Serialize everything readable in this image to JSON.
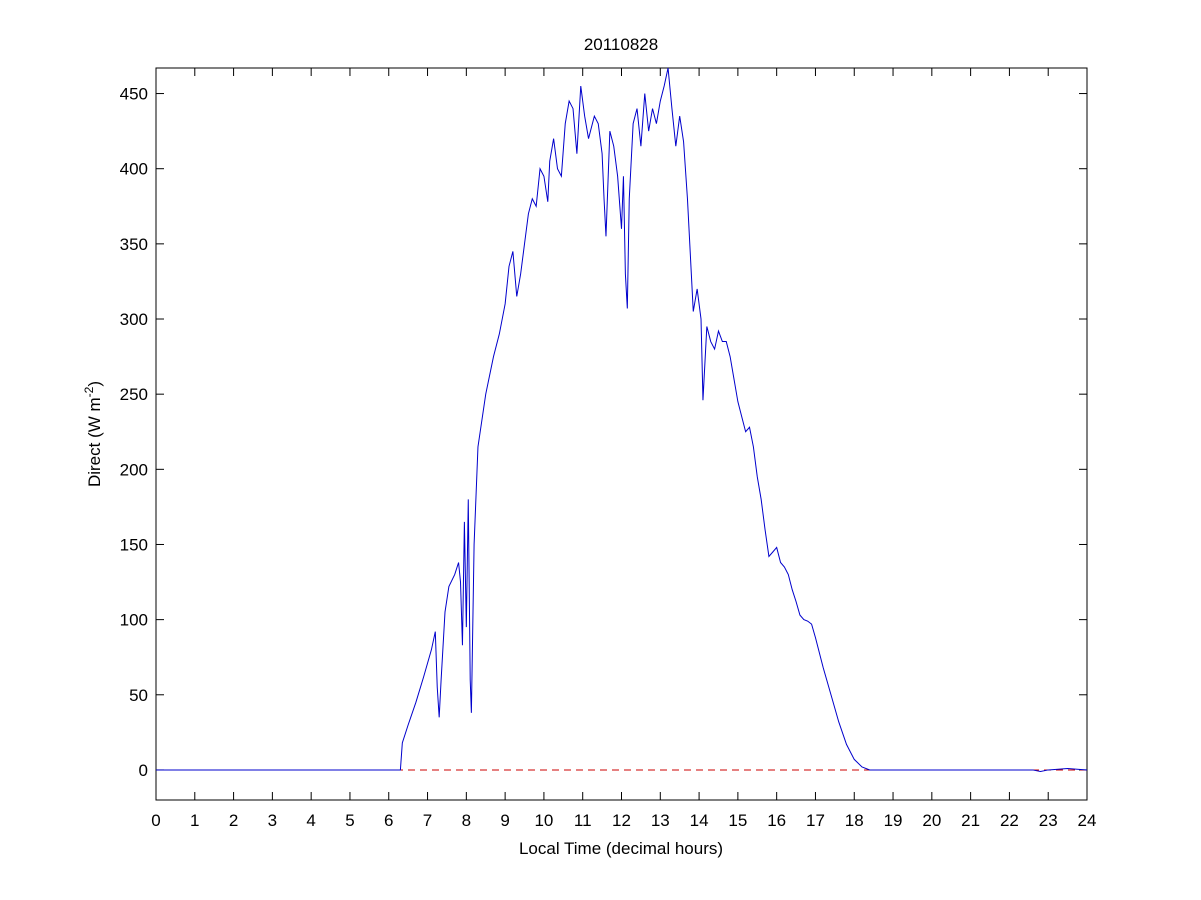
{
  "chart_data": {
    "type": "line",
    "title": "20110828",
    "x_label": "Local Time (decimal hours)",
    "y_label": "Direct (W m",
    "y_label_superscript": "-2",
    "y_label_suffix": ")",
    "x": [
      0,
      6.2,
      6.3,
      6.35,
      6.5,
      6.7,
      6.9,
      7.1,
      7.2,
      7.25,
      7.3,
      7.35,
      7.45,
      7.55,
      7.7,
      7.8,
      7.85,
      7.9,
      7.95,
      8.0,
      8.05,
      8.1,
      8.13,
      8.2,
      8.3,
      8.5,
      8.7,
      8.85,
      9.0,
      9.1,
      9.2,
      9.3,
      9.4,
      9.5,
      9.6,
      9.7,
      9.8,
      9.9,
      10.0,
      10.1,
      10.15,
      10.25,
      10.35,
      10.45,
      10.55,
      10.65,
      10.75,
      10.85,
      10.95,
      11.05,
      11.15,
      11.3,
      11.4,
      11.5,
      11.55,
      11.6,
      11.7,
      11.8,
      11.9,
      12.0,
      12.05,
      12.1,
      12.15,
      12.2,
      12.3,
      12.4,
      12.5,
      12.6,
      12.7,
      12.8,
      12.9,
      13.0,
      13.1,
      13.2,
      13.3,
      13.4,
      13.5,
      13.6,
      13.7,
      13.8,
      13.85,
      13.95,
      14.05,
      14.1,
      14.2,
      14.3,
      14.4,
      14.5,
      14.6,
      14.7,
      14.8,
      14.9,
      15.0,
      15.1,
      15.2,
      15.3,
      15.4,
      15.5,
      15.6,
      15.7,
      15.8,
      15.9,
      16.0,
      16.1,
      16.2,
      16.3,
      16.4,
      16.5,
      16.6,
      16.7,
      16.8,
      16.9,
      17.0,
      17.2,
      17.4,
      17.6,
      17.8,
      18.0,
      18.2,
      18.4,
      22.6,
      22.8,
      23.0,
      23.5,
      24
    ],
    "series": [
      {
        "color": "#0000cc",
        "values": [
          0,
          0,
          0,
          18,
          30,
          45,
          62,
          80,
          92,
          55,
          35,
          60,
          105,
          122,
          130,
          138,
          125,
          83,
          165,
          95,
          180,
          60,
          38,
          150,
          215,
          250,
          275,
          290,
          310,
          335,
          345,
          315,
          330,
          350,
          370,
          380,
          375,
          400,
          395,
          378,
          405,
          420,
          400,
          395,
          430,
          445,
          440,
          410,
          455,
          435,
          420,
          435,
          430,
          410,
          380,
          355,
          425,
          415,
          395,
          360,
          395,
          330,
          307,
          380,
          430,
          440,
          415,
          450,
          425,
          440,
          430,
          445,
          455,
          467,
          440,
          415,
          435,
          418,
          380,
          330,
          305,
          320,
          300,
          246,
          295,
          285,
          280,
          292,
          285,
          285,
          275,
          260,
          245,
          235,
          225,
          228,
          215,
          195,
          180,
          160,
          142,
          145,
          148,
          138,
          135,
          130,
          120,
          112,
          103,
          100,
          99,
          97,
          88,
          68,
          50,
          32,
          17,
          7,
          2,
          0,
          0,
          -1,
          0,
          1,
          0
        ]
      }
    ],
    "reference_line": {
      "value": 0,
      "color": "#cc0000"
    },
    "xlim": [
      0,
      24
    ],
    "xticks": [
      0,
      1,
      2,
      3,
      4,
      5,
      6,
      7,
      8,
      9,
      10,
      11,
      12,
      13,
      14,
      15,
      16,
      17,
      18,
      19,
      20,
      21,
      22,
      23,
      24
    ],
    "ylim": [
      -20,
      467
    ],
    "yticks": [
      0,
      50,
      100,
      150,
      200,
      250,
      300,
      350,
      400,
      450
    ]
  }
}
